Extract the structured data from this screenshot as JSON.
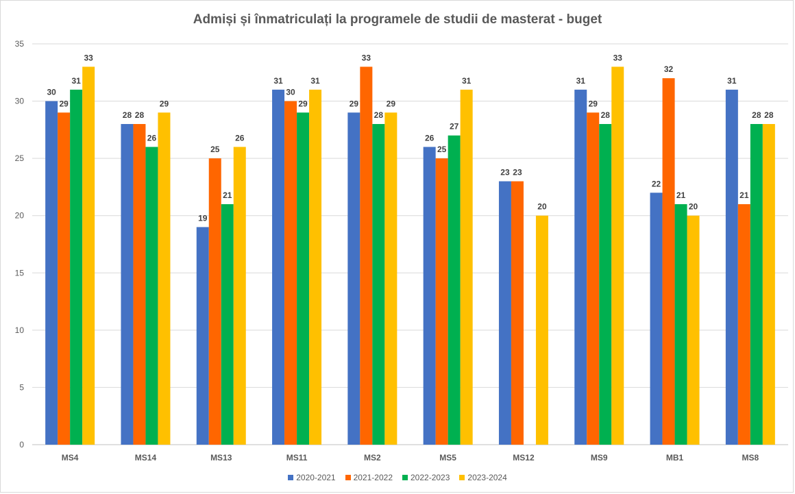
{
  "chart_data": {
    "type": "bar",
    "title": "Admiși și înmatriculați la programele de studii de masterat - buget",
    "xlabel": "",
    "ylabel": "",
    "ylim": [
      0,
      35
    ],
    "yticks": [
      "0",
      "5",
      "10",
      "15",
      "20",
      "25",
      "30",
      "35"
    ],
    "grid": true,
    "legend_position": "bottom",
    "categories": [
      "MS4",
      "MS14",
      "MS13",
      "MS11",
      "MS2",
      "MS5",
      "MS12",
      "MS9",
      "MB1",
      "MS8"
    ],
    "series": [
      {
        "name": "2020-2021",
        "color": "#4472c4",
        "values": [
          30,
          28,
          19,
          31,
          29,
          26,
          23,
          31,
          22,
          31
        ]
      },
      {
        "name": "2021-2022",
        "color": "#ff6600",
        "values": [
          29,
          28,
          25,
          30,
          33,
          25,
          23,
          29,
          32,
          21
        ]
      },
      {
        "name": "2022-2023",
        "color": "#00b050",
        "values": [
          31,
          26,
          21,
          29,
          28,
          27,
          null,
          28,
          21,
          28
        ]
      },
      {
        "name": "2023-2024",
        "color": "#ffc000",
        "values": [
          33,
          29,
          26,
          31,
          29,
          31,
          20,
          33,
          20,
          28
        ]
      }
    ]
  }
}
